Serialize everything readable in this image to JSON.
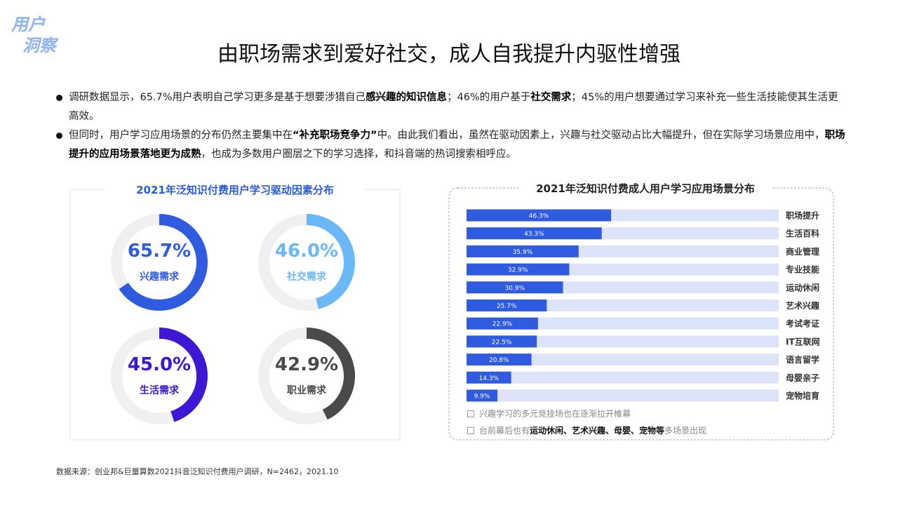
{
  "tag": [
    "用户",
    "洞察"
  ],
  "title": "由职场需求到爱好社交，成人自我提升内驱性增强",
  "bullets": [
    [
      {
        "text": "调研数据显示，65.7%用户表明自己学习更多是基于想要涉猎自己",
        "bold": false
      },
      {
        "text": "感兴趣的知识信息",
        "bold": true
      },
      {
        "text": "；46%的用户基于",
        "bold": false
      },
      {
        "text": "社交需求",
        "bold": true
      },
      {
        "text": "；45%的用户想要通过学习来补充一些生活技能使其生活更高效。",
        "bold": false
      }
    ],
    [
      {
        "text": "但同时，用户学习应用场景的分布仍然主要集中在",
        "bold": false
      },
      {
        "text": "“补充职场竞争力”",
        "bold": true
      },
      {
        "text": "中。由此我们看出，虽然在驱动因素上，兴趣与社交驱动占比大幅提升，但在实际学习场景应用中，",
        "bold": false
      },
      {
        "text": "职场提升的应用场景落地更为成熟",
        "bold": true
      },
      {
        "text": "，也成为多数用户圈层之下的学习选择，和抖音端的热词搜索相呼应。",
        "bold": false
      }
    ]
  ],
  "chart_data": [
    {
      "type": "donut",
      "title": "2021年泛知识付费用户学习驱动因素分布",
      "categories": [
        "兴趣需求",
        "社交需求",
        "生活需求",
        "职业需求"
      ],
      "values": [
        65.7,
        46.0,
        45.0,
        42.9
      ],
      "value_labels": [
        "65.7%",
        "46.0%",
        "45.0%",
        "42.9%"
      ],
      "colors": [
        "#2f5be0",
        "#6ab8f7",
        "#3d16d6",
        "#4a4a4a"
      ],
      "track_color": "#f0f0f2"
    },
    {
      "type": "hbar",
      "title": "2021年泛知识付费成人用户学习应用场景分布",
      "categories": [
        "职场提升",
        "生活百科",
        "商业管理",
        "专业技能",
        "运动休闲",
        "艺术兴趣",
        "考试考证",
        "IT互联网",
        "语言留学",
        "母婴亲子",
        "宠物培育"
      ],
      "values": [
        46.3,
        43.3,
        35.9,
        32.9,
        30.9,
        25.7,
        22.9,
        22.5,
        20.8,
        14.3,
        9.9
      ],
      "value_labels": [
        "46.3%",
        "43.3%",
        "35.9%",
        "32.9%",
        "30.9%",
        "25.7%",
        "22.9%",
        "22.5%",
        "20.8%",
        "14.3%",
        "9.9%"
      ],
      "xlim": [
        0,
        100
      ],
      "color": "#2f5be0",
      "track_color": "#dde3f8",
      "notes": [
        [
          {
            "text": "兴趣学习的多元竞技场也在逐渐拉开帷幕",
            "bold": false
          }
        ],
        [
          {
            "text": "台前幕后也有",
            "bold": false
          },
          {
            "text": "运动休闲、艺术兴趣、母婴、宠物等",
            "bold": true
          },
          {
            "text": "多场景出现",
            "bold": false
          }
        ]
      ]
    }
  ],
  "source": "数据来源：创业邦&巨量算数2021抖音泛知识付费用户调研，N=2462，2021.10"
}
